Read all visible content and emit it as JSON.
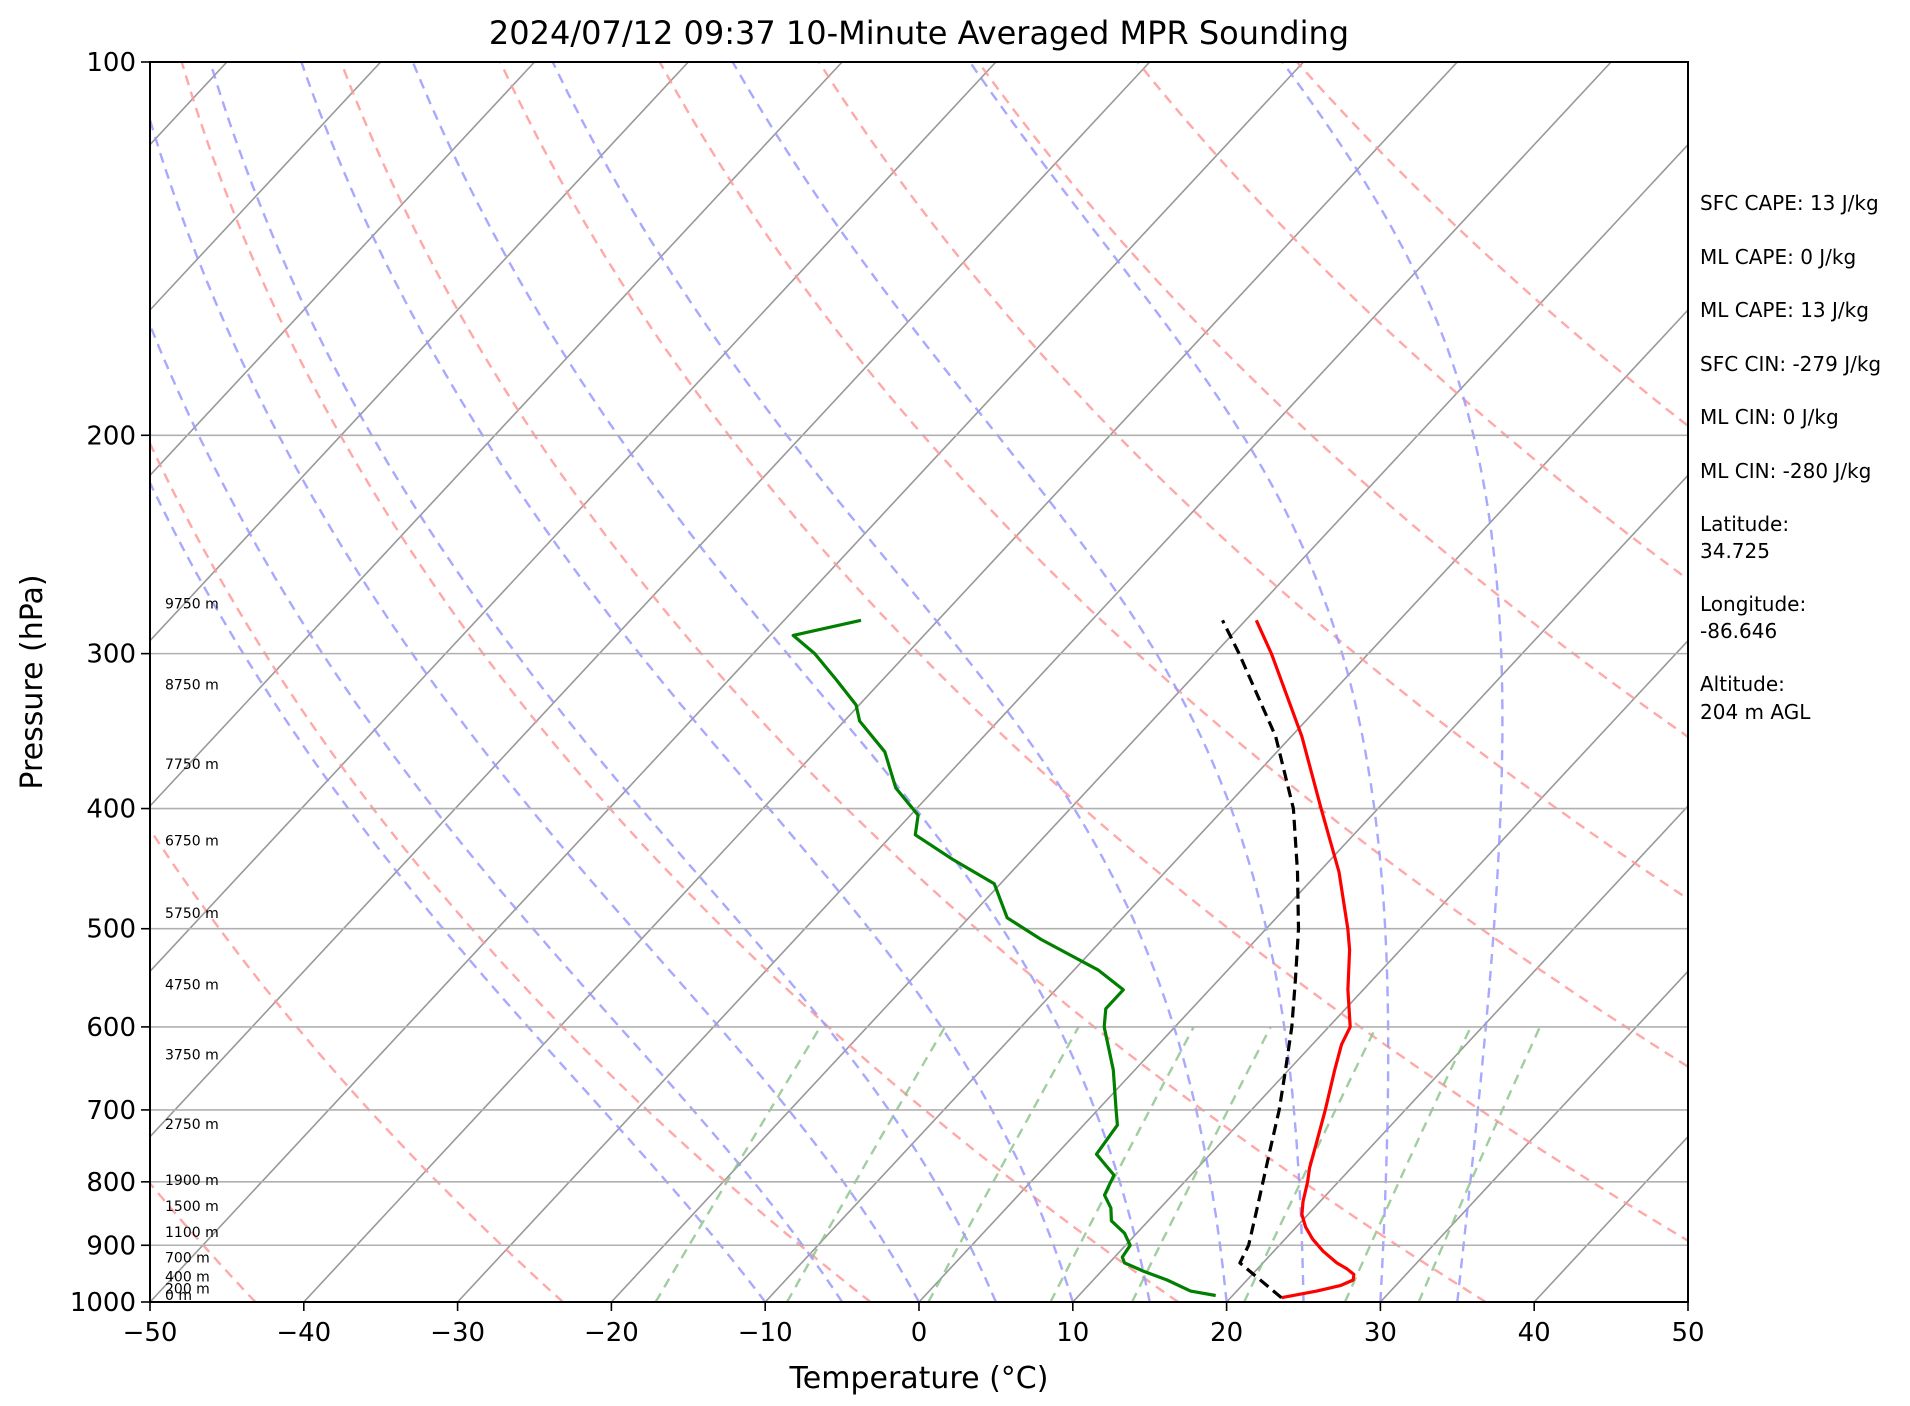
{
  "chart_data": {
    "type": "line",
    "title": "2024/07/12 09:37 10-Minute Averaged MPR Sounding",
    "xlabel": "Temperature (°C)",
    "ylabel": "Pressure (hPa)",
    "x_scale": "skew-T",
    "y_scale": "log",
    "xlim": [
      -50,
      50
    ],
    "ylim": [
      1000,
      100
    ],
    "x_ticks": [
      -50,
      -40,
      -30,
      -20,
      -10,
      0,
      10,
      20,
      30,
      40,
      50
    ],
    "x_tick_labels": [
      "−50",
      "−40",
      "−30",
      "−20",
      "−10",
      "0",
      "10",
      "20",
      "30",
      "40",
      "50"
    ],
    "y_ticks": [
      1000,
      900,
      800,
      700,
      600,
      500,
      400,
      300,
      200,
      100
    ],
    "y_tick_labels": [
      "1000",
      "900",
      "800",
      "700",
      "600",
      "500",
      "400",
      "300",
      "200",
      "100"
    ],
    "grid": "horizontal lines at pressure ticks",
    "skew_per_log_decade": 75,
    "series": [
      {
        "name": "",
        "color": "#ff0000",
        "style": "solid",
        "points": [
          {
            "p": 992,
            "t": 23.3
          },
          {
            "p": 980,
            "t": 25.2
          },
          {
            "p": 970,
            "t": 26.4
          },
          {
            "p": 960,
            "t": 26.9
          },
          {
            "p": 950,
            "t": 26.6
          },
          {
            "p": 940,
            "t": 25.8
          },
          {
            "p": 930,
            "t": 24.8
          },
          {
            "p": 910,
            "t": 23.2
          },
          {
            "p": 890,
            "t": 21.8
          },
          {
            "p": 870,
            "t": 20.6
          },
          {
            "p": 850,
            "t": 19.6
          },
          {
            "p": 830,
            "t": 18.9
          },
          {
            "p": 800,
            "t": 18.0
          },
          {
            "p": 780,
            "t": 17.3
          },
          {
            "p": 750,
            "t": 16.4
          },
          {
            "p": 700,
            "t": 14.8
          },
          {
            "p": 650,
            "t": 13.0
          },
          {
            "p": 620,
            "t": 11.9
          },
          {
            "p": 600,
            "t": 11.4
          },
          {
            "p": 560,
            "t": 9.0
          },
          {
            "p": 520,
            "t": 6.7
          },
          {
            "p": 500,
            "t": 5.3
          },
          {
            "p": 450,
            "t": 1.3
          },
          {
            "p": 400,
            "t": -3.7
          },
          {
            "p": 350,
            "t": -9.3
          },
          {
            "p": 300,
            "t": -16.3
          },
          {
            "p": 282,
            "t": -19.3
          }
        ]
      },
      {
        "name": "",
        "color": "#007f00",
        "style": "solid",
        "points": [
          {
            "p": 988,
            "t": 18.9
          },
          {
            "p": 980,
            "t": 17.0
          },
          {
            "p": 960,
            "t": 14.8
          },
          {
            "p": 945,
            "t": 12.8
          },
          {
            "p": 930,
            "t": 11.0
          },
          {
            "p": 920,
            "t": 10.5
          },
          {
            "p": 900,
            "t": 10.3
          },
          {
            "p": 880,
            "t": 9.2
          },
          {
            "p": 860,
            "t": 7.6
          },
          {
            "p": 840,
            "t": 6.8
          },
          {
            "p": 820,
            "t": 5.6
          },
          {
            "p": 790,
            "t": 5.0
          },
          {
            "p": 760,
            "t": 2.6
          },
          {
            "p": 720,
            "t": 2.2
          },
          {
            "p": 700,
            "t": 1.2
          },
          {
            "p": 650,
            "t": -1.4
          },
          {
            "p": 600,
            "t": -4.6
          },
          {
            "p": 580,
            "t": -5.6
          },
          {
            "p": 560,
            "t": -5.6
          },
          {
            "p": 540,
            "t": -8.4
          },
          {
            "p": 510,
            "t": -14.0
          },
          {
            "p": 490,
            "t": -17.5
          },
          {
            "p": 460,
            "t": -20.4
          },
          {
            "p": 440,
            "t": -24.5
          },
          {
            "p": 420,
            "t": -28.5
          },
          {
            "p": 405,
            "t": -29.5
          },
          {
            "p": 385,
            "t": -32.6
          },
          {
            "p": 360,
            "t": -35.5
          },
          {
            "p": 340,
            "t": -39.0
          },
          {
            "p": 330,
            "t": -40.2
          },
          {
            "p": 315,
            "t": -43.0
          },
          {
            "p": 300,
            "t": -46.0
          },
          {
            "p": 290,
            "t": -48.5
          },
          {
            "p": 282,
            "t": -45.0
          }
        ]
      },
      {
        "name": "",
        "color": "#000000",
        "style": "dashed",
        "points": [
          {
            "p": 992,
            "t": 23.3
          },
          {
            "p": 930,
            "t": 18.5
          },
          {
            "p": 900,
            "t": 18.0
          },
          {
            "p": 850,
            "t": 16.6
          },
          {
            "p": 800,
            "t": 15.1
          },
          {
            "p": 750,
            "t": 13.5
          },
          {
            "p": 700,
            "t": 11.8
          },
          {
            "p": 650,
            "t": 9.8
          },
          {
            "p": 600,
            "t": 7.6
          },
          {
            "p": 550,
            "t": 5.0
          },
          {
            "p": 500,
            "t": 2.1
          },
          {
            "p": 450,
            "t": -1.4
          },
          {
            "p": 400,
            "t": -5.5
          },
          {
            "p": 350,
            "t": -11.0
          },
          {
            "p": 300,
            "t": -18.4
          },
          {
            "p": 282,
            "t": -21.5
          }
        ]
      }
    ],
    "dry_adiabats_theta_K": [
      230,
      250,
      270,
      290,
      310,
      330,
      350,
      370,
      390,
      410,
      430
    ],
    "moist_adiabats_start_C": [
      -10,
      -5,
      0,
      5,
      10,
      15,
      20,
      25,
      30,
      35
    ],
    "mixing_ratio_lines_gkg": [
      1,
      2,
      4,
      7,
      10,
      16,
      24,
      32
    ],
    "isotherms_C": [
      -150,
      -140,
      -130,
      -120,
      -110,
      -100,
      -90,
      -80,
      -70,
      -60,
      -50,
      -40,
      -30,
      -20,
      -10,
      0,
      10,
      20,
      30,
      40,
      50
    ],
    "height_labels": [
      {
        "label": "0 m",
        "p": 1000
      },
      {
        "label": "200 m",
        "p": 988
      },
      {
        "label": "400 m",
        "p": 966
      },
      {
        "label": "700 m",
        "p": 933
      },
      {
        "label": "1100 m",
        "p": 890
      },
      {
        "label": "1500 m",
        "p": 848
      },
      {
        "label": "1900 m",
        "p": 808
      },
      {
        "label": "2750 m",
        "p": 728
      },
      {
        "label": "3750 m",
        "p": 640
      },
      {
        "label": "4750 m",
        "p": 562
      },
      {
        "label": "5750 m",
        "p": 492
      },
      {
        "label": "6750 m",
        "p": 430
      },
      {
        "label": "7750 m",
        "p": 373
      },
      {
        "label": "8750 m",
        "p": 322
      },
      {
        "label": "9750 m",
        "p": 277
      }
    ]
  },
  "side_panel": {
    "sfc_cape": "SFC CAPE: 13 J/kg",
    "ml_cape_1": "ML CAPE: 0 J/kg",
    "ml_cape_2": "ML CAPE: 13 J/kg",
    "sfc_cin": "SFC CIN: -279 J/kg",
    "ml_cin_1": "ML CIN: 0 J/kg",
    "ml_cin_2": "ML CIN: -280 J/kg",
    "latitude_label": "Latitude:",
    "latitude_value": "34.725",
    "longitude_label": "Longitude:",
    "longitude_value": "-86.646",
    "altitude_label": "Altitude:",
    "altitude_value": "204 m AGL"
  },
  "colors": {
    "temperature": "#ff0000",
    "dewpoint": "#007f00",
    "parcel": "#000000",
    "isotherm": "#999999",
    "dry_adiabat": "#ff9999",
    "moist_adiabat": "#9999ff",
    "mixing_ratio": "#88c288"
  }
}
